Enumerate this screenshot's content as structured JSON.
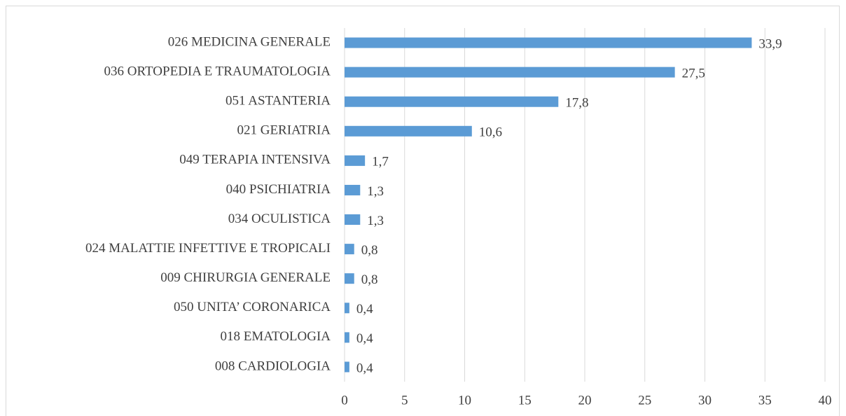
{
  "chart_data": {
    "type": "barh",
    "categories": [
      "026 MEDICINA GENERALE",
      "036 ORTOPEDIA E TRAUMATOLOGIA",
      "051 ASTANTERIA",
      "021 GERIATRIA",
      "049 TERAPIA INTENSIVA",
      "040 PSICHIATRIA",
      "034 OCULISTICA",
      "024 MALATTIE INFETTIVE E TROPICALI",
      "009 CHIRURGIA GENERALE",
      "050 UNITA’ CORONARICA",
      "018 EMATOLOGIA",
      "008 CARDIOLOGIA"
    ],
    "values": [
      33.9,
      27.5,
      17.8,
      10.6,
      1.7,
      1.3,
      1.3,
      0.8,
      0.8,
      0.4,
      0.4,
      0.4
    ],
    "value_labels": [
      "33,9",
      "27,5",
      "17,8",
      "10,6",
      "1,7",
      "1,3",
      "1,3",
      "0,8",
      "0,8",
      "0,4",
      "0,4",
      "0,4"
    ],
    "color": "#5b9bd5",
    "xlim": [
      0,
      40
    ],
    "xticks": [
      0,
      5,
      10,
      15,
      20,
      25,
      30,
      35,
      40
    ],
    "grid": true
  }
}
